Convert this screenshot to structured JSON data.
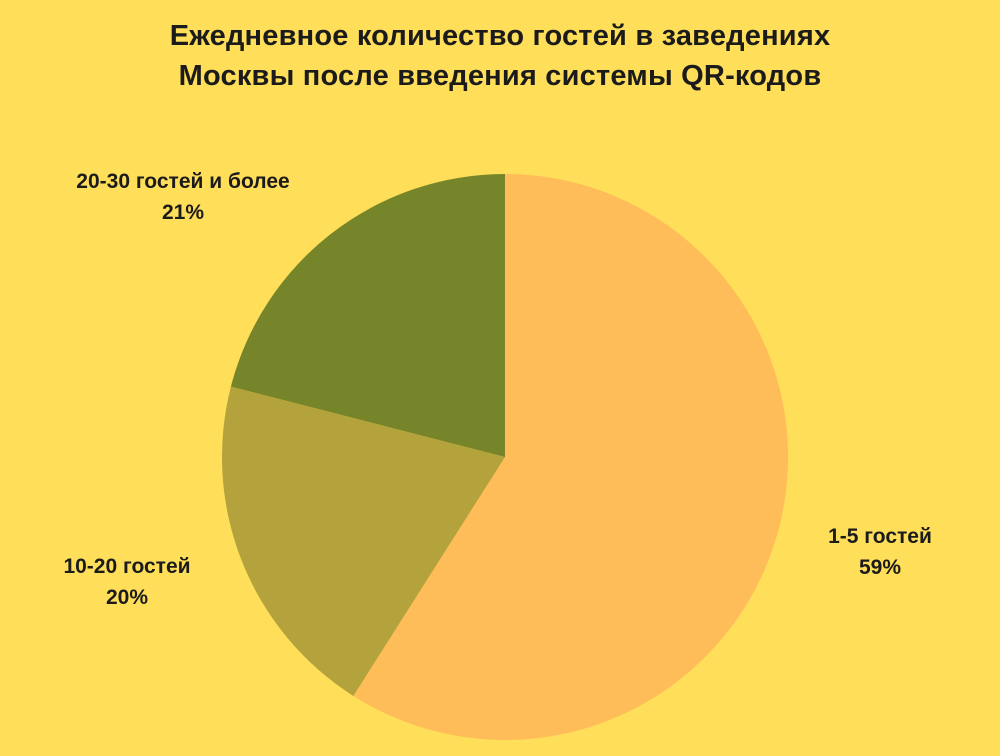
{
  "background_color": "#FFDE59",
  "text_color": "#1B1B1B",
  "title": {
    "line1": "Ежедневное количество гостей в заведениях",
    "line2": "Москвы после введения системы QR-кодов"
  },
  "chart_data": {
    "type": "pie",
    "title": "Ежедневное количество гостей в заведениях Москвы после введения системы QR-кодов",
    "start_angle_deg": 0,
    "direction": "clockwise",
    "legend_position": "labels-outside",
    "slices": [
      {
        "label": "1-5 гостей",
        "percent": 59,
        "percent_label": "59%",
        "color": "#FFBD59"
      },
      {
        "label": "10-20 гостей",
        "percent": 20,
        "percent_label": "20%",
        "color": "#B4A33C"
      },
      {
        "label": "20-30 гостей и более",
        "percent": 21,
        "percent_label": "21%",
        "color": "#76852A"
      }
    ]
  }
}
